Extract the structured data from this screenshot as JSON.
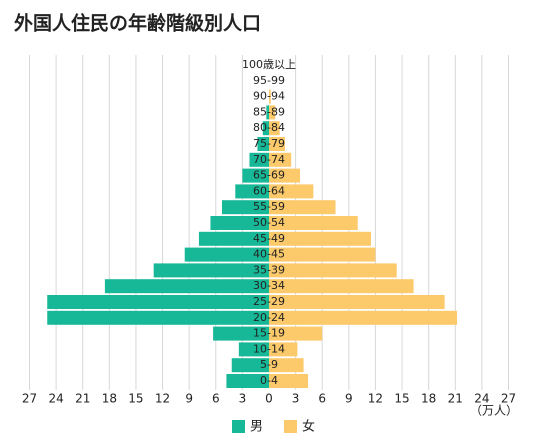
{
  "chart_data": {
    "type": "pyramid",
    "title": "外国人住民の年齢階級別人口",
    "categories": [
      "100歳以上",
      "95-99",
      "90-94",
      "85-89",
      "80-84",
      "75-79",
      "70-74",
      "65-69",
      "60-64",
      "55-59",
      "50-54",
      "45-49",
      "40-45",
      "35-39",
      "30-34",
      "25-29",
      "20-24",
      "15-19",
      "10-14",
      "5-9",
      "0-4"
    ],
    "series": [
      {
        "name": "男",
        "color": "#17b897",
        "values": [
          0,
          0,
          0,
          0.3,
          0.7,
          1.3,
          2.2,
          3,
          3.8,
          5.3,
          6.6,
          7.9,
          9.5,
          13,
          18.5,
          25,
          25,
          6.3,
          3.4,
          4.2,
          4.8
        ]
      },
      {
        "name": "女",
        "color": "#fcc96b",
        "values": [
          0,
          0,
          0.2,
          0.7,
          1.2,
          1.8,
          2.5,
          3.5,
          5,
          7.5,
          10,
          11.5,
          12,
          14.4,
          16.3,
          19.8,
          21.2,
          6,
          3.2,
          3.9,
          4.4
        ]
      }
    ],
    "xlim": [
      0,
      27
    ],
    "xticks": [
      0,
      3,
      6,
      9,
      12,
      15,
      18,
      21,
      24,
      27
    ],
    "x_label": "（万人）",
    "grid": true
  }
}
